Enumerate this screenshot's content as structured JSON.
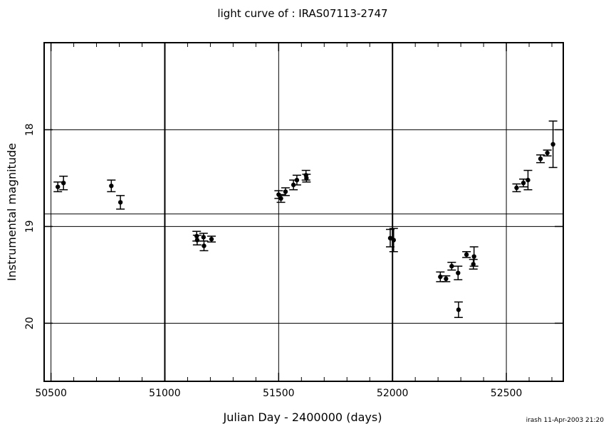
{
  "chart_data": {
    "type": "scatter",
    "title": "light curve of : IRAS07113-2747",
    "xlabel": "Julian Day - 2400000 (days)",
    "ylabel": "Instrumental magnitude",
    "xlim": [
      50470,
      52750
    ],
    "ylim": [
      20.6,
      17.1
    ],
    "y_inverted": true,
    "x_ticks": [
      50500,
      51000,
      51500,
      52000,
      52500
    ],
    "x_tick_labels": [
      "50500",
      "51000",
      "51500",
      "52000",
      "52500"
    ],
    "y_ticks": [
      18,
      19,
      20
    ],
    "y_tick_labels": [
      "18",
      "19",
      "20"
    ],
    "grid": true,
    "reference_lines": [
      18.87
    ],
    "footer": "irash 11-Apr-2003 21:20",
    "points": [
      {
        "x": 50530,
        "y": 18.59,
        "err": 0.05
      },
      {
        "x": 50555,
        "y": 18.55,
        "err": 0.07
      },
      {
        "x": 50765,
        "y": 18.58,
        "err": 0.06
      },
      {
        "x": 50805,
        "y": 18.75,
        "err": 0.07
      },
      {
        "x": 51140,
        "y": 19.1,
        "err": 0.05
      },
      {
        "x": 51142,
        "y": 19.14,
        "err": 0.05
      },
      {
        "x": 51170,
        "y": 19.11,
        "err": 0.04
      },
      {
        "x": 51172,
        "y": 19.2,
        "err": 0.05
      },
      {
        "x": 51205,
        "y": 19.13,
        "err": 0.03
      },
      {
        "x": 51500,
        "y": 18.67,
        "err": 0.04
      },
      {
        "x": 51510,
        "y": 18.71,
        "err": 0.04
      },
      {
        "x": 51530,
        "y": 18.64,
        "err": 0.04
      },
      {
        "x": 51565,
        "y": 18.57,
        "err": 0.05
      },
      {
        "x": 51580,
        "y": 18.52,
        "err": 0.05
      },
      {
        "x": 51620,
        "y": 18.47,
        "err": 0.05
      },
      {
        "x": 51622,
        "y": 18.5,
        "err": 0.04
      },
      {
        "x": 51990,
        "y": 19.12,
        "err": 0.09
      },
      {
        "x": 52005,
        "y": 19.14,
        "err": 0.12
      },
      {
        "x": 52210,
        "y": 19.52,
        "err": 0.05
      },
      {
        "x": 52235,
        "y": 19.54,
        "err": 0.03
      },
      {
        "x": 52260,
        "y": 19.41,
        "err": 0.04
      },
      {
        "x": 52288,
        "y": 19.48,
        "err": 0.07
      },
      {
        "x": 52290,
        "y": 19.86,
        "err": 0.08
      },
      {
        "x": 52325,
        "y": 19.29,
        "err": 0.03
      },
      {
        "x": 52355,
        "y": 19.39,
        "err": 0.05
      },
      {
        "x": 52358,
        "y": 19.31,
        "err": 0.1
      },
      {
        "x": 52545,
        "y": 18.6,
        "err": 0.04
      },
      {
        "x": 52575,
        "y": 18.55,
        "err": 0.04
      },
      {
        "x": 52595,
        "y": 18.52,
        "err": 0.1
      },
      {
        "x": 52650,
        "y": 18.3,
        "err": 0.04
      },
      {
        "x": 52680,
        "y": 18.24,
        "err": 0.03
      },
      {
        "x": 52705,
        "y": 18.15,
        "err": 0.24
      }
    ]
  }
}
